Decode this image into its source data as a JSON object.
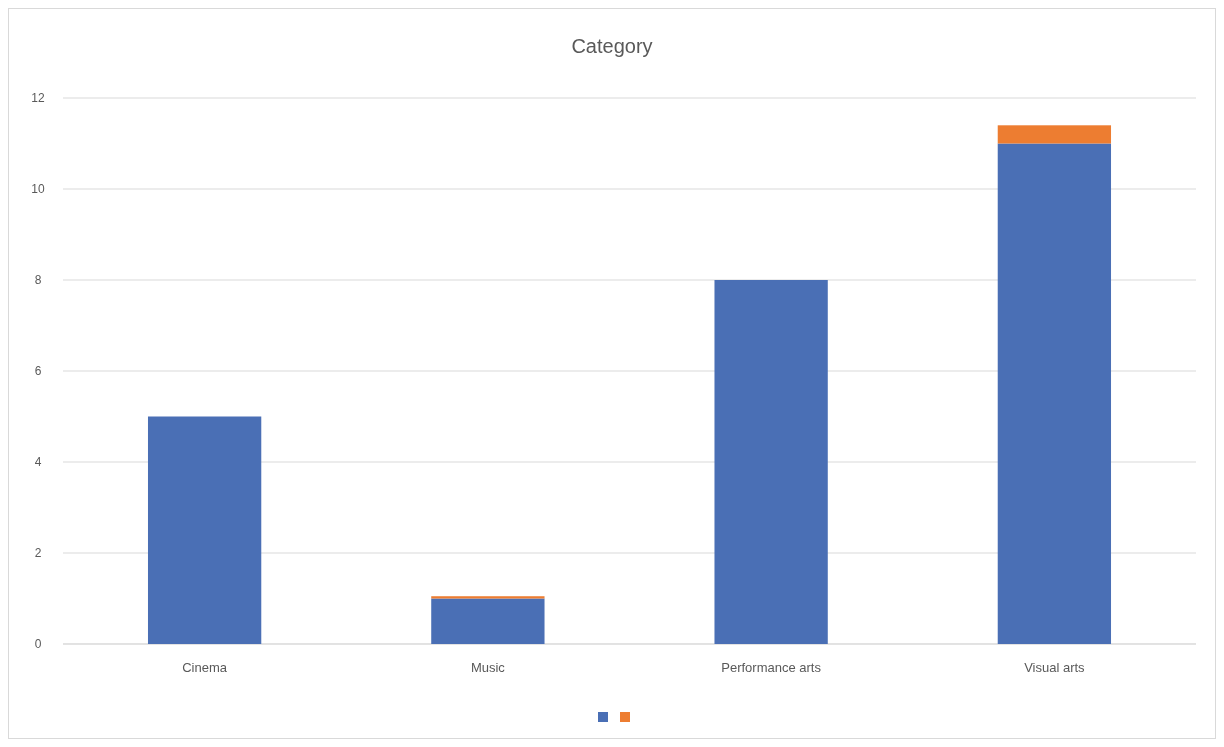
{
  "chart_data": {
    "type": "bar",
    "title": "Category",
    "categories": [
      "Cinema",
      "Music",
      "Performance arts",
      "Visual arts"
    ],
    "stacked": true,
    "series": [
      {
        "color": "#4a6fb5",
        "values": [
          5,
          1,
          8,
          11
        ]
      },
      {
        "color": "#ed7d31",
        "values": [
          0,
          0.05,
          0,
          0.4
        ]
      }
    ],
    "ylim": [
      0,
      12
    ],
    "yticks": [
      0,
      2,
      4,
      6,
      8,
      10,
      12
    ],
    "grid": "y"
  }
}
